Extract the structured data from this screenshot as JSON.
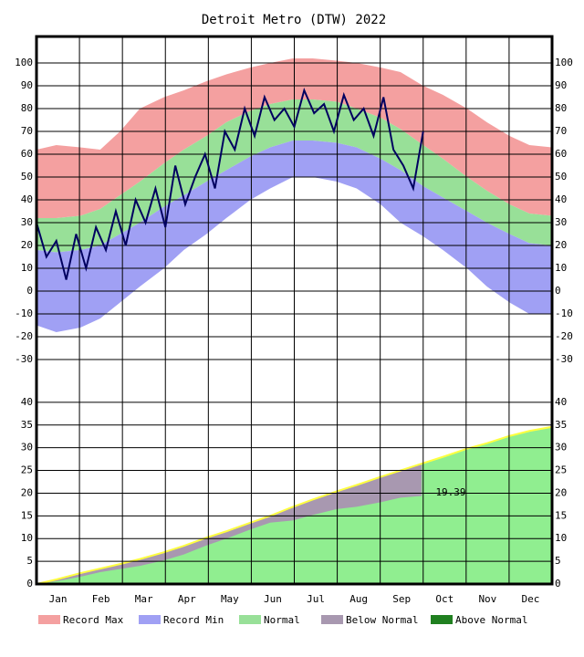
{
  "chart_data": {
    "type": "climate",
    "title": "Detroit Metro (DTW) 2022",
    "x": [
      1,
      15,
      32,
      46,
      60,
      74,
      91,
      105,
      121,
      135,
      152,
      166,
      182,
      196,
      213,
      227,
      244,
      258,
      274,
      288,
      305,
      319,
      335,
      349,
      365
    ],
    "record_max": [
      62,
      64,
      63,
      62,
      70,
      80,
      85,
      88,
      92,
      95,
      98,
      100,
      102,
      102,
      101,
      100,
      98,
      96,
      90,
      86,
      80,
      74,
      68,
      64,
      63
    ],
    "normal_high": [
      32,
      32,
      33,
      36,
      42,
      48,
      56,
      62,
      68,
      74,
      79,
      82,
      84,
      84,
      83,
      80,
      76,
      71,
      64,
      58,
      50,
      44,
      38,
      34,
      33
    ],
    "normal_low": [
      18,
      17,
      18,
      20,
      25,
      30,
      37,
      42,
      48,
      53,
      59,
      63,
      66,
      66,
      65,
      63,
      58,
      53,
      46,
      41,
      35,
      30,
      25,
      21,
      20
    ],
    "record_min": [
      -15,
      -18,
      -16,
      -12,
      -5,
      2,
      10,
      18,
      25,
      32,
      40,
      45,
      50,
      50,
      48,
      45,
      38,
      30,
      24,
      18,
      10,
      2,
      -5,
      -10,
      -10
    ],
    "observed": {
      "x": [
        1,
        8,
        15,
        22,
        29,
        36,
        43,
        50,
        57,
        64,
        71,
        78,
        85,
        92,
        99,
        106,
        113,
        120,
        127,
        134,
        141,
        148,
        155,
        162,
        169,
        176,
        183,
        190,
        197,
        204,
        211,
        218,
        225,
        232,
        239,
        246,
        253,
        260,
        267,
        274
      ],
      "values": [
        30,
        15,
        22,
        5,
        25,
        10,
        28,
        18,
        35,
        20,
        40,
        30,
        45,
        28,
        55,
        38,
        50,
        60,
        45,
        70,
        62,
        80,
        68,
        85,
        75,
        80,
        72,
        88,
        78,
        82,
        70,
        86,
        75,
        80,
        68,
        85,
        62,
        55,
        45,
        70
      ],
      "color": "#000060"
    },
    "precip_normal": [
      0,
      1,
      2.4,
      3.4,
      4.4,
      5.5,
      7,
      8.4,
      10.2,
      11.6,
      13.5,
      15,
      17,
      18.6,
      20.4,
      21.8,
      23.6,
      25,
      26.6,
      28,
      29.8,
      31,
      32.6,
      33.7,
      34.6
    ],
    "precip_actual": {
      "x": [
        1,
        15,
        32,
        46,
        60,
        74,
        91,
        105,
        121,
        135,
        152,
        166,
        182,
        196,
        213,
        227,
        244,
        258,
        273
      ],
      "values": [
        0,
        0.6,
        1.6,
        2.6,
        3.3,
        4,
        5.2,
        6.5,
        8.5,
        10,
        12,
        13.5,
        14,
        15.2,
        16.5,
        17,
        18,
        19,
        19.39
      ]
    },
    "annotation": "19.39",
    "xlim": [
      1,
      365
    ],
    "ylim": [
      -39.6,
      111.6
    ],
    "yticks": [
      -30,
      -20,
      -10,
      0,
      10,
      20,
      30,
      40,
      50,
      60,
      70,
      80,
      90,
      100
    ],
    "y2lim": [
      0,
      44.6
    ],
    "y2ticks": [
      0,
      5,
      10,
      15,
      20,
      25,
      30,
      35,
      40
    ],
    "months": [
      "Jan",
      "Feb",
      "Mar",
      "Apr",
      "May",
      "Jun",
      "Jul",
      "Aug",
      "Sep",
      "Oct",
      "Nov",
      "Dec"
    ],
    "legend": [
      {
        "label": "Record Max",
        "color": "#f4a0a0"
      },
      {
        "label": "Record Min",
        "color": "#a0a0f4"
      },
      {
        "label": "Normal",
        "color": "#98e098"
      },
      {
        "label": "Below Normal",
        "color": "#a898b0"
      },
      {
        "label": "Above Normal",
        "color": "#208020"
      }
    ]
  }
}
